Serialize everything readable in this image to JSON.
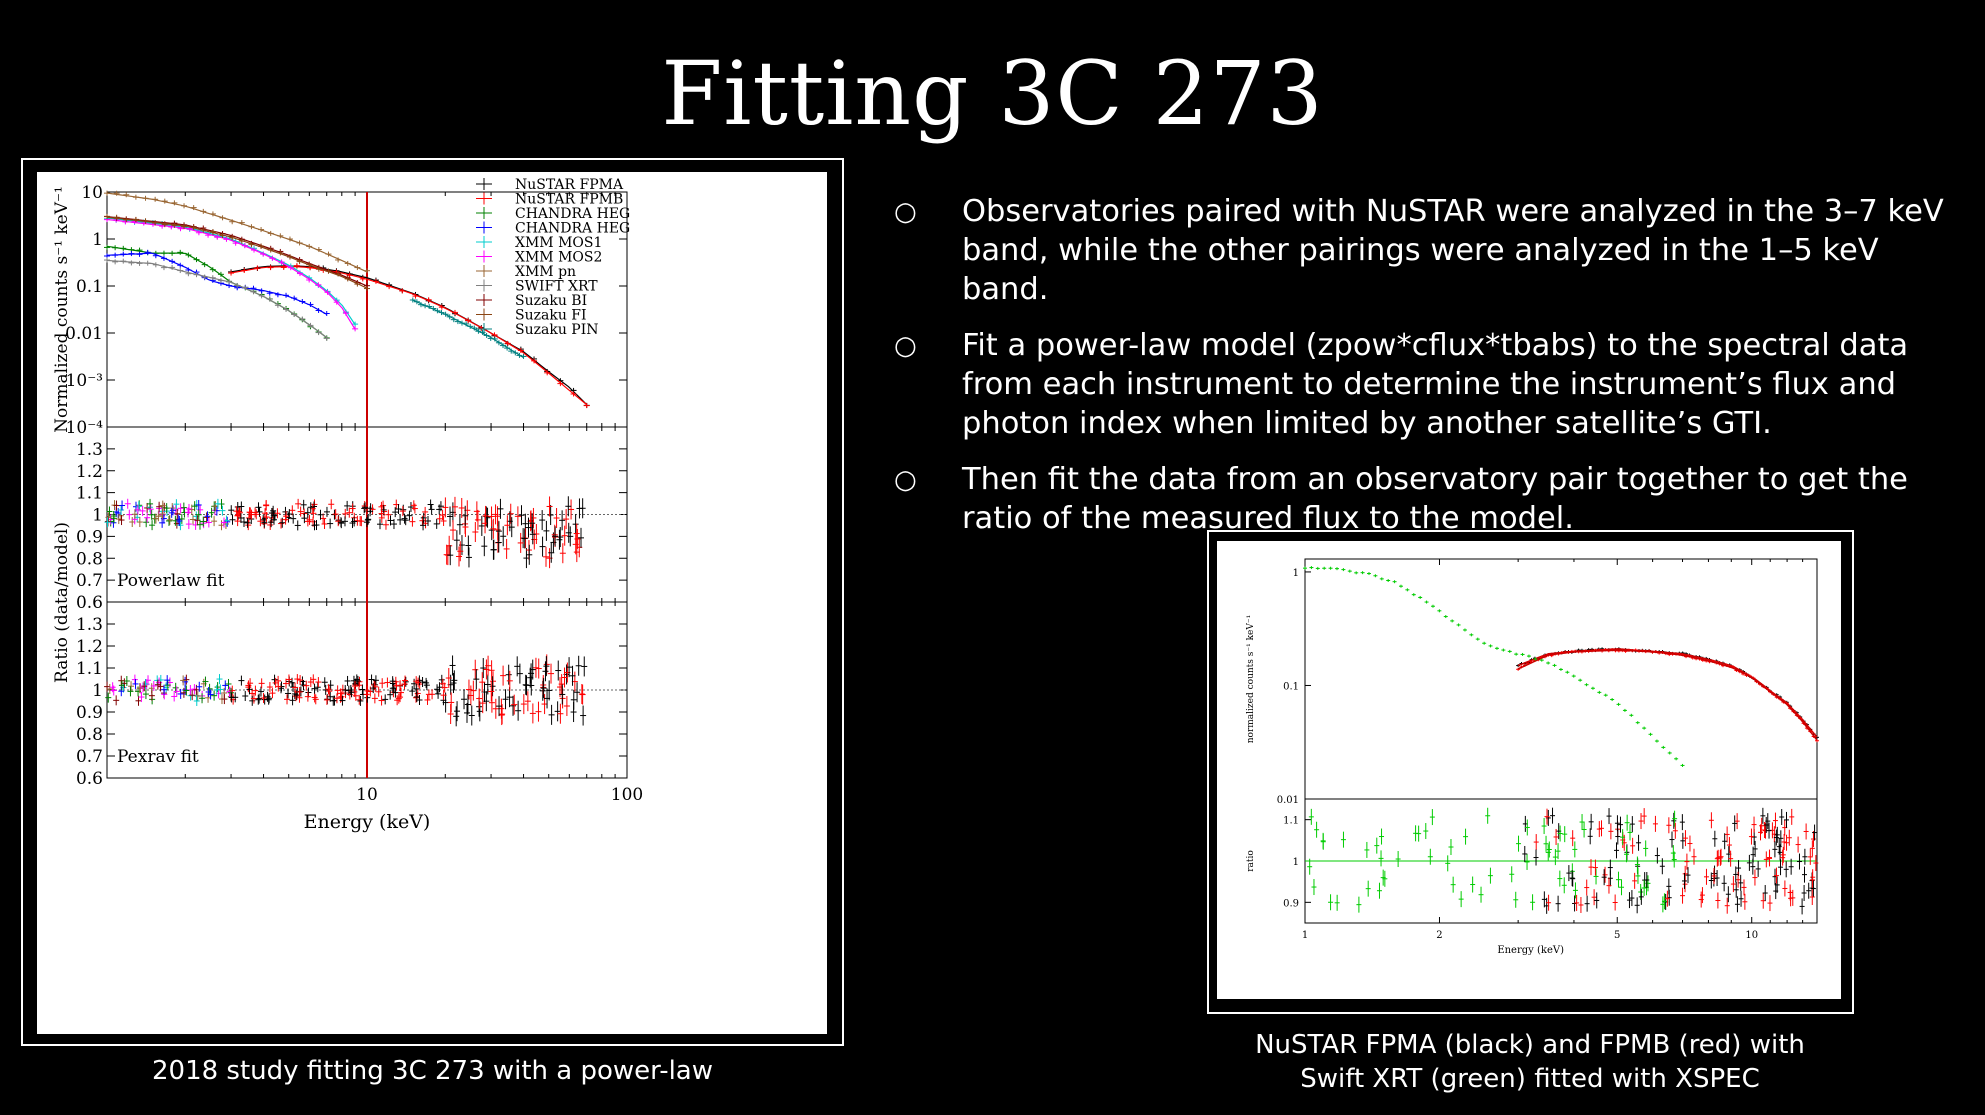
{
  "slide": {
    "title": "Fitting 3C 273",
    "bullet_marker": "○",
    "bullets": [
      "Observatories paired with NuSTAR were analyzed in the 3–7 keV band, while the other pairings were analyzed in the 1–5 keV band.",
      "Fit a power-law model (zpow*cflux*tbabs) to the spectral data from each instrument to determine the instrument’s flux and photon index when limited by another satellite’s GTI.",
      "Then fit the data from an observatory pair together to get the ratio of the measured flux to the model."
    ],
    "caption_left": "2018 study fitting 3C 273 with a power-law",
    "caption_right_line1": "NuSTAR FPMA (black) and FPMB (red) with",
    "caption_right_line2": "Swift XRT (green) fitted with XSPEC"
  },
  "chart_data": [
    {
      "type": "scatter",
      "panel": "spectrum",
      "xlabel": "Energy (keV)",
      "ylabel": "Normalized counts s⁻¹ keV⁻¹",
      "xscale": "log",
      "yscale": "log",
      "xlim": [
        1,
        100
      ],
      "ylim": [
        0.0001,
        10
      ],
      "x_ticks": [
        "10",
        "100"
      ],
      "y_ticks": [
        "10",
        "1",
        "0.1",
        "0.01",
        "10⁻³",
        "10⁻⁴"
      ],
      "vertical_line_keV": 10,
      "legend_position": "top-right",
      "series": [
        {
          "name": "NuSTAR FPMA",
          "color": "#000000",
          "x": [
            3,
            4,
            5,
            6,
            8,
            10,
            15,
            20,
            30,
            40,
            50,
            60,
            70
          ],
          "values": [
            0.2,
            0.26,
            0.27,
            0.26,
            0.2,
            0.15,
            0.07,
            0.035,
            0.01,
            0.004,
            0.0015,
            0.0007,
            0.0003
          ]
        },
        {
          "name": "NuSTAR FPMB",
          "color": "#ff0000",
          "x": [
            3,
            4,
            5,
            6,
            8,
            10,
            15,
            20,
            30,
            40,
            50,
            60,
            70
          ],
          "values": [
            0.19,
            0.25,
            0.26,
            0.25,
            0.19,
            0.14,
            0.068,
            0.034,
            0.01,
            0.0038,
            0.0014,
            0.0006,
            0.0003
          ]
        },
        {
          "name": "CHANDRA HEG",
          "color": "#008000",
          "x": [
            1.0,
            1.2,
            1.5,
            2.0,
            2.5,
            3.0,
            4.0,
            5.0,
            6.0,
            7.0
          ],
          "values": [
            0.7,
            0.6,
            0.5,
            0.5,
            0.25,
            0.12,
            0.06,
            0.03,
            0.015,
            0.008
          ]
        },
        {
          "name": "CHANDRA HEG",
          "color": "#0000ff",
          "x": [
            1.0,
            1.5,
            2.0,
            2.5,
            3.0,
            4.0,
            5.0,
            6.0,
            7.0
          ],
          "values": [
            0.45,
            0.5,
            0.25,
            0.13,
            0.1,
            0.08,
            0.06,
            0.04,
            0.025
          ]
        },
        {
          "name": "XMM MOS1",
          "color": "#00cccc",
          "x": [
            1.0,
            2.0,
            3.0,
            4.0,
            5.0,
            6.0,
            7.0,
            8.0,
            9.0
          ],
          "values": [
            2.8,
            1.8,
            1.0,
            0.5,
            0.28,
            0.15,
            0.08,
            0.04,
            0.015
          ]
        },
        {
          "name": "XMM MOS2",
          "color": "#ff00ff",
          "x": [
            1.0,
            2.0,
            3.0,
            4.0,
            5.0,
            6.0,
            7.0,
            8.0,
            9.0
          ],
          "values": [
            2.6,
            1.7,
            0.95,
            0.48,
            0.26,
            0.14,
            0.075,
            0.035,
            0.012
          ]
        },
        {
          "name": "XMM pn",
          "color": "#996633",
          "x": [
            1.0,
            1.5,
            2.0,
            3.0,
            4.0,
            6.0,
            8.0,
            10.0
          ],
          "values": [
            9.5,
            7.0,
            5.0,
            2.5,
            1.5,
            0.7,
            0.35,
            0.2
          ]
        },
        {
          "name": "SWIFT XRT",
          "color": "#808080",
          "x": [
            1.0,
            1.5,
            2.0,
            3.0,
            4.0,
            5.0,
            6.0,
            7.0
          ],
          "values": [
            0.35,
            0.3,
            0.2,
            0.12,
            0.06,
            0.03,
            0.015,
            0.008
          ]
        },
        {
          "name": "Suzaku BI",
          "color": "#800000",
          "x": [
            1.0,
            2.0,
            3.0,
            4.0,
            5.0,
            6.0,
            8.0,
            10.0
          ],
          "values": [
            3.0,
            2.0,
            1.2,
            0.7,
            0.45,
            0.3,
            0.17,
            0.1
          ]
        },
        {
          "name": "Suzaku FI",
          "color": "#8b4513",
          "x": [
            1.0,
            2.0,
            3.0,
            4.0,
            5.0,
            6.0,
            8.0,
            10.0
          ],
          "values": [
            2.9,
            1.9,
            1.1,
            0.65,
            0.42,
            0.28,
            0.16,
            0.09
          ]
        },
        {
          "name": "Suzaku PIN",
          "color": "#008080",
          "x": [
            15,
            20,
            30,
            40
          ],
          "values": [
            0.05,
            0.025,
            0.008,
            0.003
          ]
        }
      ]
    },
    {
      "type": "scatter",
      "panel": "ratio-powerlaw",
      "panel_label": "Powerlaw fit",
      "ylabel": "Ratio (data/model)",
      "xscale": "log",
      "xlim": [
        1,
        100
      ],
      "ylim": [
        0.6,
        1.4
      ],
      "y_ticks": [
        "1.3",
        "1.2",
        "1.1",
        "1",
        "0.9",
        "0.8",
        "0.7",
        "0.6"
      ],
      "reference_line": 1
    },
    {
      "type": "scatter",
      "panel": "ratio-pexrav",
      "panel_label": "Pexrav fit",
      "xlabel": "Energy (keV)",
      "xscale": "log",
      "xlim": [
        1,
        100
      ],
      "ylim": [
        0.6,
        1.4
      ],
      "x_ticks": [
        "10",
        "100"
      ],
      "y_ticks": [
        "1.3",
        "1.2",
        "1.1",
        "1",
        "0.9",
        "0.8",
        "0.7",
        "0.6"
      ],
      "reference_line": 1
    },
    {
      "type": "scatter",
      "panel": "xspec-spectrum",
      "ylabel": "normalized counts s⁻¹ keV⁻¹",
      "xscale": "log",
      "yscale": "log",
      "xlim": [
        1,
        14
      ],
      "ylim": [
        0.01,
        1.3
      ],
      "y_ticks": [
        "1",
        "0.1",
        "0.01"
      ],
      "series": [
        {
          "name": "NuSTAR FPMA",
          "color": "#000000",
          "x": [
            3.0,
            3.5,
            4.0,
            5.0,
            6.0,
            7.0,
            8.0,
            9.0,
            10.0,
            11.0,
            12.0,
            13.0,
            14.0
          ],
          "values": [
            0.15,
            0.19,
            0.2,
            0.21,
            0.2,
            0.19,
            0.17,
            0.15,
            0.12,
            0.09,
            0.07,
            0.05,
            0.035
          ]
        },
        {
          "name": "NuSTAR FPMB",
          "color": "#ff0000",
          "x": [
            3.0,
            3.5,
            4.0,
            5.0,
            6.0,
            7.0,
            8.0,
            9.0,
            10.0,
            11.0,
            12.0,
            13.0,
            14.0
          ],
          "values": [
            0.14,
            0.185,
            0.198,
            0.205,
            0.198,
            0.185,
            0.165,
            0.145,
            0.118,
            0.088,
            0.068,
            0.048,
            0.033
          ]
        },
        {
          "name": "Swift XRT",
          "color": "#00cc00",
          "x": [
            1.0,
            1.2,
            1.4,
            1.6,
            1.8,
            2.0,
            2.3,
            2.6,
            3.0,
            3.5,
            4.0,
            4.5,
            5.0,
            5.5,
            6.0,
            6.5,
            7.0
          ],
          "values": [
            1.1,
            1.05,
            0.95,
            0.8,
            0.6,
            0.45,
            0.3,
            0.22,
            0.19,
            0.16,
            0.12,
            0.09,
            0.07,
            0.05,
            0.035,
            0.026,
            0.02
          ]
        }
      ]
    },
    {
      "type": "scatter",
      "panel": "xspec-ratio",
      "xlabel": "Energy (keV)",
      "ylabel": "ratio",
      "xscale": "log",
      "xlim": [
        1,
        14
      ],
      "ylim": [
        0.85,
        1.15
      ],
      "x_ticks": [
        "1",
        "2",
        "5",
        "10"
      ],
      "y_ticks": [
        "1.1",
        "1",
        "0.9"
      ],
      "reference_line": 1
    }
  ]
}
